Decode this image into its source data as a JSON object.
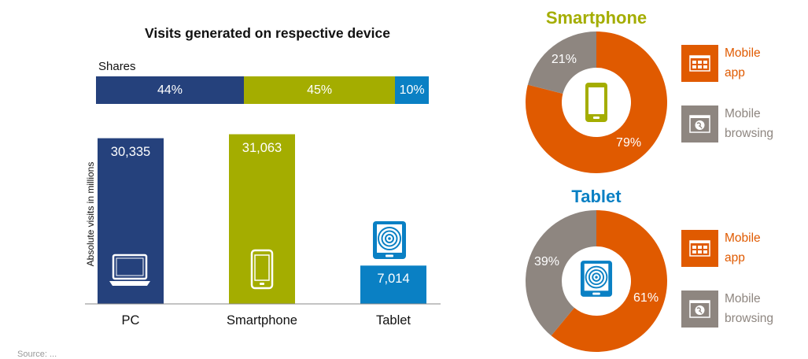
{
  "chart_data": [
    {
      "type": "bar",
      "title": "Visits generated on respective device",
      "xlabel": "",
      "ylabel": "Absolute visits in millions",
      "categories": [
        "PC",
        "Smartphone",
        "Tablet"
      ],
      "values": [
        30335,
        31063,
        7014
      ],
      "value_labels": [
        "30,335",
        "31,063",
        "7,014"
      ],
      "ylim": [
        0,
        32000
      ],
      "colors": [
        "#25417c",
        "#a4ad00",
        "#0a80c4"
      ],
      "grid": false,
      "shares": {
        "label": "Shares",
        "values": [
          44,
          45,
          10
        ],
        "labels": [
          "44%",
          "45%",
          "10%"
        ]
      }
    },
    {
      "type": "pie",
      "style": "donut",
      "title": "Smartphone",
      "title_color": "#a4ad00",
      "categories": [
        "Mobile app",
        "Mobile browsing"
      ],
      "values": [
        79,
        21
      ],
      "labels": [
        "79%",
        "21%"
      ],
      "colors": [
        "#e05a00",
        "#8e8680"
      ]
    },
    {
      "type": "pie",
      "style": "donut",
      "title": "Tablet",
      "title_color": "#0a80c4",
      "categories": [
        "Mobile app",
        "Mobile browsing"
      ],
      "values": [
        61,
        39
      ],
      "labels": [
        "61%",
        "39%"
      ],
      "colors": [
        "#e05a00",
        "#8e8680"
      ]
    }
  ],
  "legend": {
    "mobile_app": [
      "Mobile",
      "app"
    ],
    "mobile_browsing": [
      "Mobile",
      "browsing"
    ]
  },
  "icons": {
    "pc": "laptop-icon",
    "smartphone": "smartphone-icon",
    "tablet": "tablet-icon",
    "mobile_app": "app-grid-icon",
    "mobile_browsing": "browser-globe-icon"
  },
  "colors": {
    "orange": "#e05a00",
    "grey": "#8e8680",
    "navy": "#25417c",
    "green": "#a4ad00",
    "blue": "#0a80c4"
  },
  "footnote": "Source: ..."
}
